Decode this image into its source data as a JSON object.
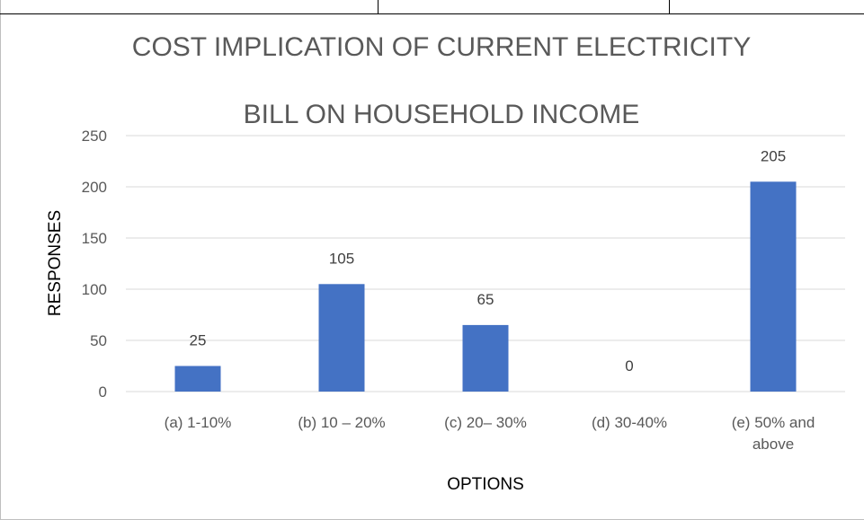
{
  "chart_data": {
    "type": "bar",
    "title_lines": [
      "COST IMPLICATION OF CURRENT ELECTRICITY",
      "BILL ON HOUSEHOLD INCOME"
    ],
    "xlabel": "OPTIONS",
    "ylabel": "RESPONSES",
    "categories": [
      [
        "(a) 1-10%"
      ],
      [
        "(b) 10 – 20%"
      ],
      [
        "(c) 20– 30%"
      ],
      [
        "(d) 30-40%"
      ],
      [
        "(e) 50% and",
        "above"
      ]
    ],
    "values": [
      25,
      105,
      65,
      0,
      205
    ],
    "yticks": [
      0,
      50,
      100,
      150,
      200,
      250
    ],
    "ylim": [
      0,
      250
    ],
    "grid": true,
    "legend": "none",
    "bar_color": "#4472c4"
  }
}
